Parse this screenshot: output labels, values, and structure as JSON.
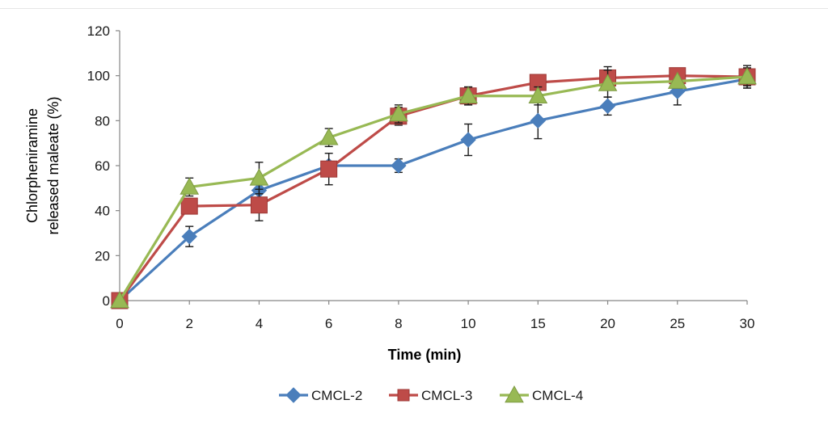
{
  "chart_data": {
    "type": "line",
    "xlabel": "Time (min)",
    "ylabel_lines": [
      "Chlorpheniramine",
      "released maleate (%)"
    ],
    "categories": [
      "0",
      "2",
      "4",
      "6",
      "8",
      "10",
      "15",
      "20",
      "25",
      "30"
    ],
    "ylim": [
      0,
      120
    ],
    "yticks": [
      "0",
      "20",
      "40",
      "60",
      "80",
      "100",
      "120"
    ],
    "grid": false,
    "legend_position": "bottom",
    "series": [
      {
        "name": "CMCL-2",
        "color": "#4a7ebb",
        "marker": "diamond",
        "values": [
          0,
          28.5,
          49,
          60,
          60,
          71.5,
          80,
          86.5,
          93,
          98.5
        ],
        "errors": [
          0,
          4.5,
          0,
          0,
          3,
          7,
          8,
          4,
          6,
          4
        ]
      },
      {
        "name": "CMCL-3",
        "color": "#be4b48",
        "marker": "square",
        "values": [
          0,
          42,
          42.5,
          58.5,
          82,
          91,
          97,
          99,
          100,
          99.5
        ],
        "errors": [
          0,
          3,
          7,
          7,
          4,
          4,
          0,
          5,
          0,
          5
        ]
      },
      {
        "name": "CMCL-4",
        "color": "#98b954",
        "marker": "triangle",
        "values": [
          0,
          50.5,
          54.5,
          72.5,
          83,
          91,
          91,
          96.5,
          97.5,
          99.5
        ],
        "errors": [
          0,
          4,
          7,
          4,
          4,
          4,
          4,
          6,
          0,
          4
        ]
      }
    ]
  }
}
